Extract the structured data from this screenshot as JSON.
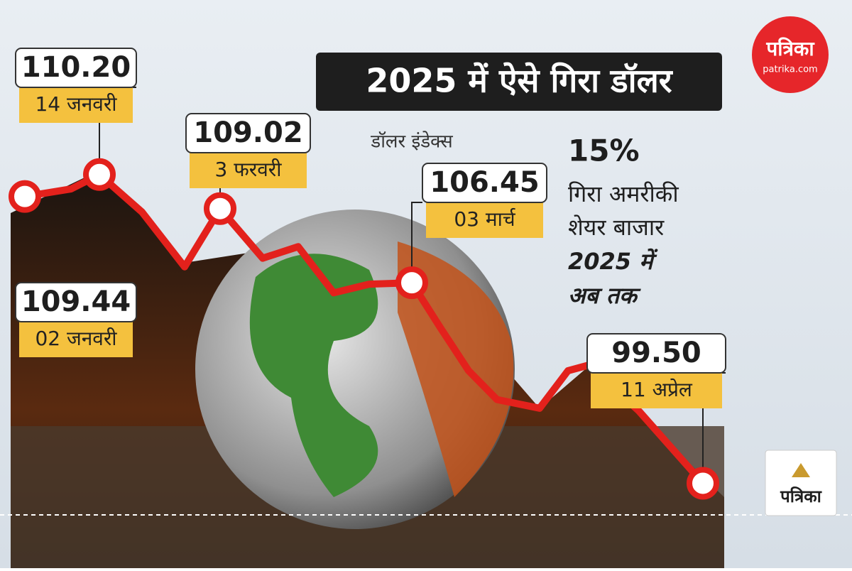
{
  "chart_data": {
    "type": "line",
    "title": "2025 में ऐसे गिरा डॉलर",
    "subtitle": "डॉलर इंडेक्स",
    "categories": [
      "02 जनवरी",
      null,
      "14 जनवरी",
      null,
      null,
      "3 फरवरी",
      null,
      null,
      null,
      null,
      "03 मार्च",
      null,
      null,
      null,
      null,
      null,
      null,
      null,
      "11 अप्रेल"
    ],
    "values": [
      109.44,
      109.7,
      110.2,
      108.9,
      107.0,
      109.02,
      107.3,
      107.7,
      106.1,
      106.4,
      106.45,
      104.9,
      103.4,
      102.4,
      102.1,
      103.4,
      103.6,
      102.0,
      99.5
    ],
    "value_labels": [
      "109.44",
      null,
      "110.20",
      null,
      null,
      "109.02",
      null,
      null,
      null,
      null,
      "106.45",
      null,
      null,
      null,
      null,
      null,
      null,
      null,
      "99.50"
    ],
    "color": "#e3211c",
    "ylim": [
      97,
      113
    ],
    "annotations": [
      "15%",
      "गिरा अमरीकी",
      "शेयर बाजार",
      "2025 में",
      "अब तक"
    ],
    "logo": "पत्रिका",
    "logo_url": "patrika.com",
    "footer_logo": "पत्रिका"
  }
}
